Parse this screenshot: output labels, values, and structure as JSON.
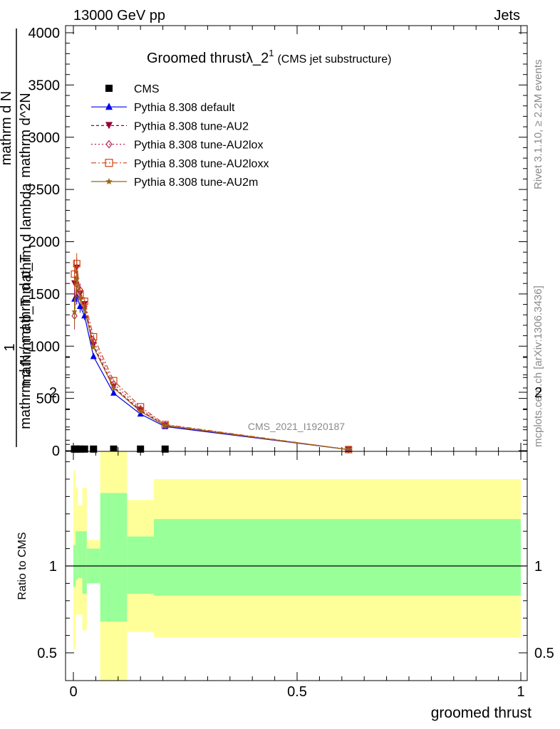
{
  "header": {
    "left": "13000 GeV pp",
    "right": "Jets"
  },
  "side_text": {
    "rivet": "Rivet 3.1.10, ≥ 2.2M events",
    "mcplots": "mcplots.cern.ch [arXiv:1306.3436]"
  },
  "chart_data": [
    {
      "type": "line",
      "title": "Groomed thrustλ_2",
      "title_sup": "1",
      "subtitle": "(CMS jet substructure)",
      "watermark": "CMS_2021_I1920187",
      "ylabel": {
        "top": "1",
        "numerator": "mathrm d N",
        "denominator": "mathrm d p_T mathrm d lambda",
        "overlay_numerator": "mathrm d^2N",
        "overlay_denominator": "mathrm d N / mathrm d p_T"
      },
      "xlim": [
        0,
        1
      ],
      "ylim": [
        0,
        4000
      ],
      "yticks": [
        0,
        500,
        1000,
        1500,
        2000,
        2500,
        3000,
        3500,
        4000
      ],
      "yticklabels": [
        "0",
        "500",
        "1000",
        "1500",
        "2000",
        "2500",
        "3000",
        "3500",
        "4000"
      ],
      "legend_position": "top-left",
      "legend": [
        {
          "label": "CMS",
          "color": "#000000",
          "marker": "square"
        },
        {
          "label": "Pythia 8.308 default",
          "color": "#0000ee",
          "marker": "triangle-up"
        },
        {
          "label": "Pythia 8.308 tune-AU2",
          "color": "#990033",
          "marker": "triangle-down"
        },
        {
          "label": "Pythia 8.308 tune-AU2lox",
          "color": "#bb2255",
          "marker": "diamond-open"
        },
        {
          "label": "Pythia 8.308 tune-AU2loxx",
          "color": "#cc4411",
          "marker": "square-open"
        },
        {
          "label": "Pythia 8.308 tune-AU2m",
          "color": "#996611",
          "marker": "star"
        }
      ],
      "series": [
        {
          "name": "CMS",
          "color": "#000000",
          "marker": "square",
          "x": [
            0.0025,
            0.0075,
            0.015,
            0.025,
            0.045,
            0.09,
            0.15,
            0.205
          ],
          "y": [
            15,
            15,
            15,
            15,
            15,
            15,
            15,
            15
          ]
        },
        {
          "name": "Pythia 8.308 default",
          "color": "#0000ee",
          "marker": "triangle-up",
          "dash": "none",
          "x": [
            0.0025,
            0.0075,
            0.015,
            0.025,
            0.045,
            0.09,
            0.15,
            0.205,
            0.615
          ],
          "y": [
            1450,
            1480,
            1380,
            1290,
            900,
            550,
            350,
            230,
            10
          ],
          "err": [
            120,
            80,
            60,
            40,
            20,
            10,
            8,
            6,
            3
          ]
        },
        {
          "name": "Pythia 8.308 tune-AU2",
          "color": "#990033",
          "marker": "triangle-down",
          "dash": "4,3",
          "x": [
            0.0025,
            0.0075,
            0.015,
            0.025,
            0.045,
            0.09,
            0.15,
            0.205,
            0.615
          ],
          "y": [
            1600,
            1750,
            1500,
            1400,
            1010,
            610,
            385,
            240,
            10
          ],
          "err": [
            140,
            90,
            60,
            40,
            20,
            10,
            8,
            6,
            3
          ]
        },
        {
          "name": "Pythia 8.308 tune-AU2lox",
          "color": "#bb2255",
          "marker": "diamond-open",
          "dash": "2,3",
          "x": [
            0.0025,
            0.0075,
            0.015,
            0.025,
            0.045,
            0.09,
            0.15,
            0.205,
            0.615
          ],
          "y": [
            1290,
            1590,
            1540,
            1380,
            1050,
            640,
            400,
            245,
            10
          ],
          "err": [
            130,
            90,
            60,
            40,
            20,
            10,
            8,
            6,
            3
          ]
        },
        {
          "name": "Pythia 8.308 tune-AU2loxx",
          "color": "#cc4411",
          "marker": "square-open",
          "dash": "7,3,2,3",
          "x": [
            0.0025,
            0.0075,
            0.015,
            0.025,
            0.045,
            0.09,
            0.15,
            0.205,
            0.615
          ],
          "y": [
            1690,
            1790,
            1500,
            1430,
            1090,
            670,
            420,
            250,
            10
          ],
          "err": [
            140,
            100,
            60,
            40,
            20,
            10,
            8,
            6,
            3
          ]
        },
        {
          "name": "Pythia 8.308 tune-AU2m",
          "color": "#996611",
          "marker": "star",
          "dash": "none",
          "x": [
            0.0025,
            0.0075,
            0.015,
            0.025,
            0.045,
            0.09,
            0.15,
            0.205,
            0.615
          ],
          "y": [
            1330,
            1640,
            1460,
            1350,
            990,
            600,
            375,
            240,
            10
          ],
          "err": [
            130,
            90,
            60,
            40,
            20,
            10,
            8,
            6,
            3
          ]
        }
      ]
    },
    {
      "type": "area",
      "ylabel": "Ratio to CMS",
      "xlabel": "groomed thrust",
      "xlim": [
        0,
        1
      ],
      "ylim": [
        0.4,
        2.3
      ],
      "yticks": [
        0.5,
        1,
        2
      ],
      "yticklabels": [
        "0.5",
        "1",
        "2"
      ],
      "xticks": [
        0,
        0.5,
        1
      ],
      "xticklabels": [
        "0",
        "0.5",
        "1"
      ],
      "reference_line": 1,
      "band_colors": {
        "inner": "#99ff99",
        "outer": "#ffff99"
      },
      "bins": [
        {
          "x0": 0.0,
          "x1": 0.005,
          "inner": [
            0.88,
            1.12
          ],
          "outer": [
            0.52,
            1.55
          ]
        },
        {
          "x0": 0.005,
          "x1": 0.01,
          "inner": [
            0.92,
            1.2
          ],
          "outer": [
            0.72,
            1.45
          ]
        },
        {
          "x0": 0.01,
          "x1": 0.02,
          "inner": [
            0.93,
            1.2
          ],
          "outer": [
            0.72,
            1.35
          ]
        },
        {
          "x0": 0.02,
          "x1": 0.03,
          "inner": [
            0.84,
            1.2
          ],
          "outer": [
            0.63,
            1.45
          ]
        },
        {
          "x0": 0.03,
          "x1": 0.06,
          "inner": [
            0.9,
            1.1
          ],
          "outer": [
            0.9,
            1.15
          ]
        },
        {
          "x0": 0.06,
          "x1": 0.12,
          "inner": [
            0.68,
            1.42
          ],
          "outer": [
            0.3,
            1.75
          ]
        },
        {
          "x0": 0.12,
          "x1": 0.18,
          "inner": [
            0.84,
            1.17
          ],
          "outer": [
            0.62,
            1.38
          ]
        },
        {
          "x0": 0.18,
          "x1": 1.0,
          "inner": [
            0.83,
            1.27
          ],
          "outer": [
            0.59,
            1.5
          ]
        }
      ]
    }
  ]
}
